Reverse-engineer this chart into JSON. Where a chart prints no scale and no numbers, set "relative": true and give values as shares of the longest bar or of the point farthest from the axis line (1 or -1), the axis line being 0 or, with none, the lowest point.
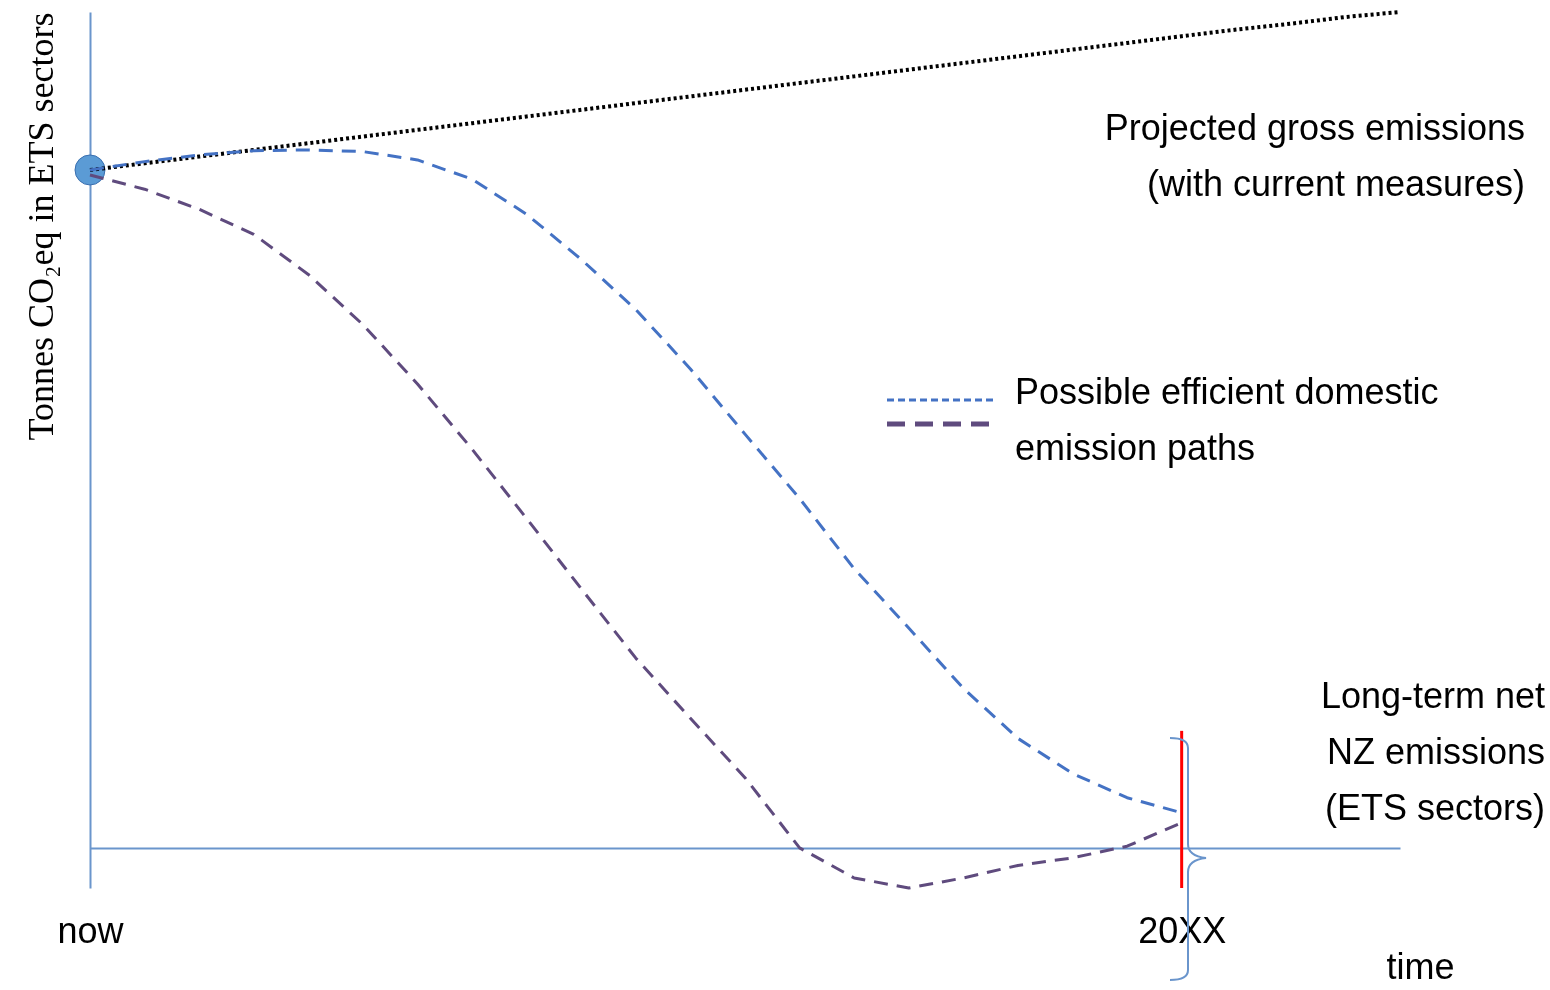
{
  "chart_data": {
    "type": "line",
    "relative": true,
    "ylabel": "Tonnes CO₂eq in ETS sectors",
    "xlabel": "time",
    "categories": [
      "now",
      null,
      null,
      null,
      null,
      null,
      null,
      null,
      null,
      null,
      null,
      null,
      null,
      null,
      null,
      null,
      null,
      null,
      null,
      null,
      "20XX",
      null,
      null,
      null,
      null
    ],
    "series": [
      {
        "name": "Projected gross emissions (with current measures)",
        "color": "#000000",
        "line_style": "dotted",
        "values": [
          0.811,
          0.819,
          0.827,
          0.835,
          0.843,
          0.851,
          0.859,
          0.867,
          0.875,
          0.883,
          0.891,
          0.899,
          0.907,
          0.915,
          0.923,
          0.931,
          0.939,
          0.947,
          0.955,
          0.963,
          0.971,
          0.979,
          0.986,
          0.994,
          1.0
        ]
      },
      {
        "color": "#4472c4",
        "line_style": "dashed",
        "values": [
          0.811,
          0.821,
          0.829,
          0.834,
          0.835,
          0.833,
          0.823,
          0.8,
          0.758,
          0.704,
          0.644,
          0.573,
          0.495,
          0.418,
          0.334,
          0.263,
          0.191,
          0.131,
          0.089,
          0.06,
          0.042,
          null,
          null,
          null,
          null
        ]
      },
      {
        "color": "#5f4b7e",
        "line_style": "dashed",
        "values": [
          0.805,
          0.788,
          0.764,
          0.734,
          0.686,
          0.626,
          0.555,
          0.477,
          0.394,
          0.31,
          0.227,
          0.155,
          0.084,
          0,
          -0.036,
          -0.048,
          -0.036,
          -0.021,
          -0.012,
          0.002,
          0.03,
          null,
          null,
          null,
          null
        ]
      },
      {
        "type": "scatter",
        "color": "#5b9bd5",
        "values": [
          0.811,
          null,
          null,
          null,
          null,
          null,
          null,
          null,
          null,
          null,
          null,
          null,
          null,
          null,
          null,
          null,
          null,
          null,
          null,
          null,
          null,
          null,
          null,
          null,
          null
        ]
      }
    ],
    "ref_lines": [
      {
        "axis": "x",
        "value": "20XX",
        "color": "#ff0000"
      }
    ],
    "annotations": [
      "Possible efficient domestic emission paths",
      "Long-term net NZ emissions (ETS sectors)"
    ],
    "grid": false
  }
}
